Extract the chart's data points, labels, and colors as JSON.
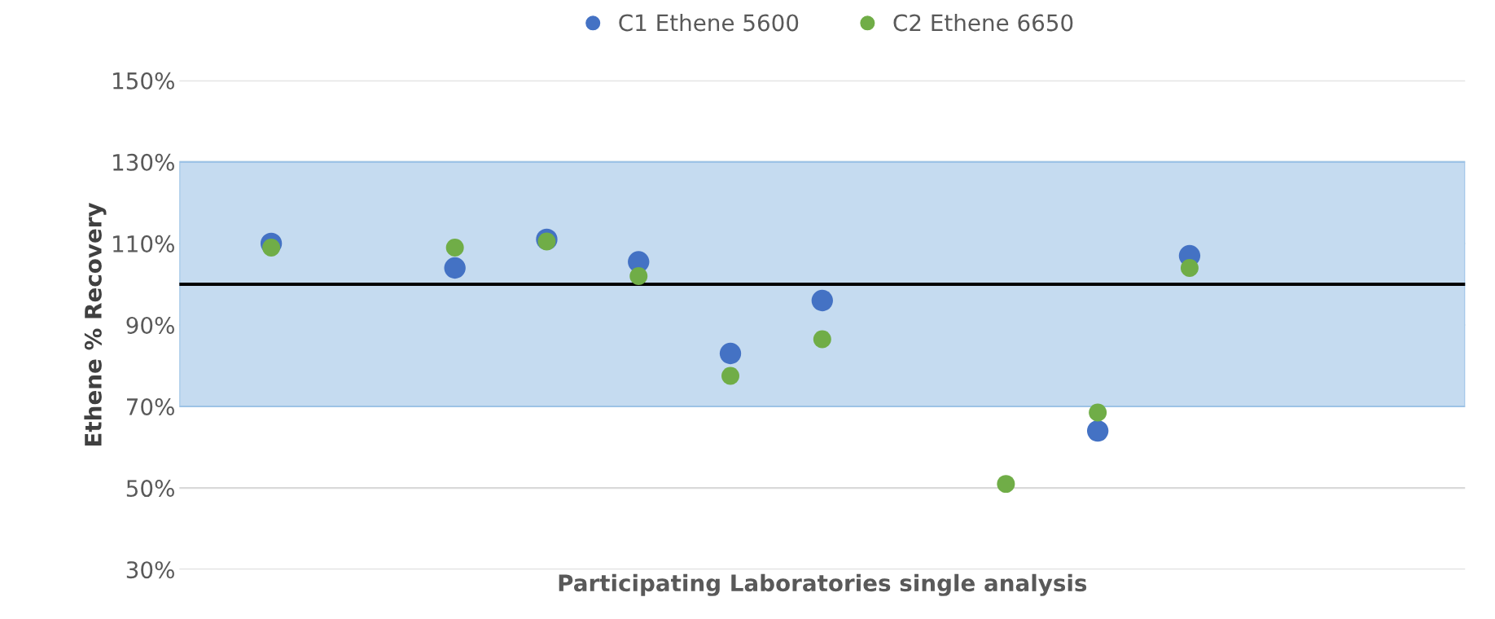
{
  "chart_data": {
    "type": "scatter",
    "xlabel": "Participating Laboratories single analysis",
    "ylabel": "Ethene % Recovery",
    "categories": [
      null,
      null,
      null,
      null,
      null,
      null,
      null,
      null,
      null,
      null,
      null,
      null,
      null
    ],
    "series": [
      {
        "name": "C1 Ethene 5600",
        "color": "#4472c4",
        "values": [
          110,
          null,
          104,
          111,
          105.5,
          83,
          96,
          null,
          null,
          64,
          107,
          null,
          null
        ]
      },
      {
        "name": "C2 Ethene 6650",
        "color": "#70ad47",
        "values": [
          109,
          null,
          109,
          110.5,
          102,
          77.5,
          86.5,
          null,
          51,
          68.5,
          104,
          null,
          null
        ]
      }
    ],
    "ylim": [
      30,
      150
    ],
    "yticks": [
      {
        "value": 30,
        "label": "30%"
      },
      {
        "value": 50,
        "label": "50%"
      },
      {
        "value": 70,
        "label": "70%"
      },
      {
        "value": 90,
        "label": "90%"
      },
      {
        "value": 110,
        "label": "110%"
      },
      {
        "value": 130,
        "label": "130%"
      },
      {
        "value": 150,
        "label": "150%"
      }
    ],
    "ref_lines": [
      {
        "axis": "y",
        "value": 100,
        "color": "#000000"
      }
    ],
    "bands": [
      {
        "axis": "y",
        "from": 70,
        "to": 130,
        "color": "#c5dbf0"
      }
    ],
    "grid": "y",
    "legend": "top",
    "marker": "circle",
    "tick_labels": "y"
  }
}
